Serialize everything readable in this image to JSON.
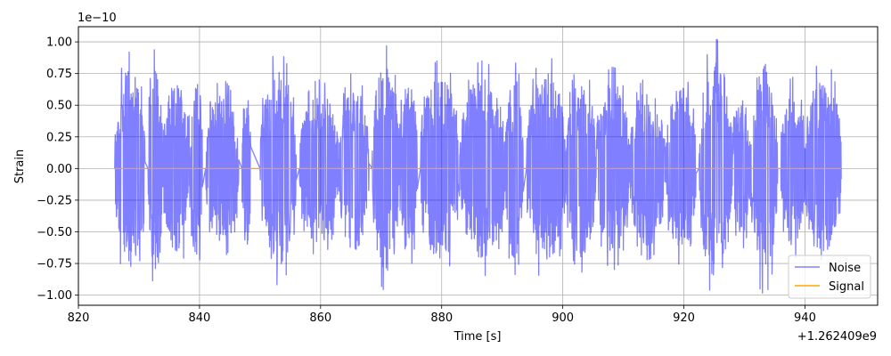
{
  "chart_data": {
    "type": "line",
    "xlabel": "Time [s]",
    "ylabel": "Strain",
    "y_scale_label": "1e−10",
    "x_offset_label": "+1.262409e9",
    "xlim": [
      820,
      952
    ],
    "ylim": [
      -1.08,
      1.12
    ],
    "x_ticks": [
      820,
      840,
      860,
      880,
      900,
      920,
      940
    ],
    "x_tick_labels": [
      "820",
      "840",
      "860",
      "880",
      "900",
      "920",
      "940"
    ],
    "y_ticks": [
      -1.0,
      -0.75,
      -0.5,
      -0.25,
      0.0,
      0.25,
      0.5,
      0.75,
      1.0
    ],
    "y_tick_labels": [
      "−1.00",
      "−0.75",
      "−0.50",
      "−0.25",
      "0.00",
      "0.25",
      "0.50",
      "0.75",
      "1.00"
    ],
    "grid": true,
    "legend_position": "bottom-right",
    "x_range": [
      826,
      946
    ],
    "series": [
      {
        "name": "Noise",
        "color": "#0000ff",
        "opacity": 0.5,
        "segments": [
          {
            "x0": 826.0,
            "x1": 831.0,
            "amp": 0.92
          },
          {
            "x0": 831.5,
            "x1": 834.0,
            "amp": 0.95
          },
          {
            "x0": 834.0,
            "x1": 838.5,
            "amp": 0.8
          },
          {
            "x0": 838.5,
            "x1": 840.5,
            "amp": 0.83
          },
          {
            "x0": 841.0,
            "x1": 846.5,
            "amp": 0.7
          },
          {
            "x0": 847.0,
            "x1": 848.5,
            "amp": 0.72
          },
          {
            "x0": 850.0,
            "x1": 856.0,
            "amp": 0.92
          },
          {
            "x0": 856.5,
            "x1": 863.0,
            "amp": 0.7
          },
          {
            "x0": 863.0,
            "x1": 868.0,
            "amp": 0.76
          },
          {
            "x0": 868.5,
            "x1": 873.0,
            "amp": 0.97
          },
          {
            "x0": 873.0,
            "x1": 876.0,
            "amp": 0.8
          },
          {
            "x0": 876.5,
            "x1": 883.0,
            "amp": 0.86
          },
          {
            "x0": 883.0,
            "x1": 890.5,
            "amp": 0.85
          },
          {
            "x0": 890.5,
            "x1": 893.5,
            "amp": 0.84
          },
          {
            "x0": 894.0,
            "x1": 900.5,
            "amp": 0.9
          },
          {
            "x0": 900.5,
            "x1": 905.5,
            "amp": 0.82
          },
          {
            "x0": 905.5,
            "x1": 911.0,
            "amp": 0.8
          },
          {
            "x0": 911.0,
            "x1": 917.0,
            "amp": 0.72
          },
          {
            "x0": 917.0,
            "x1": 922.0,
            "amp": 0.76
          },
          {
            "x0": 922.5,
            "x1": 928.0,
            "amp": 1.02
          },
          {
            "x0": 928.0,
            "x1": 931.0,
            "amp": 0.64
          },
          {
            "x0": 931.0,
            "x1": 935.5,
            "amp": 0.99
          },
          {
            "x0": 936.0,
            "x1": 940.0,
            "amp": 0.72
          },
          {
            "x0": 940.0,
            "x1": 946.0,
            "amp": 0.86
          }
        ]
      },
      {
        "name": "Signal",
        "color": "#ffa500",
        "opacity": 1.0,
        "value": 0.0
      }
    ]
  }
}
